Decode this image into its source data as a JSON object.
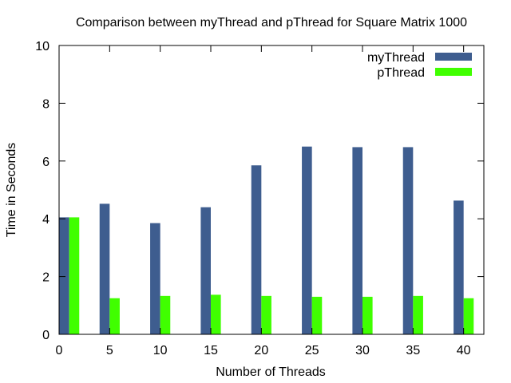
{
  "chart_data": {
    "type": "bar",
    "title": "Comparison between myThread and pThread for Square Matrix 1000",
    "xlabel": "Number of Threads",
    "ylabel": "Time in Seconds",
    "xlim": [
      0,
      42
    ],
    "ylim": [
      0,
      10
    ],
    "xticks": [
      0,
      5,
      10,
      15,
      20,
      25,
      30,
      35,
      40
    ],
    "yticks": [
      0,
      2,
      4,
      6,
      8,
      10
    ],
    "x": [
      1,
      5,
      10,
      15,
      20,
      25,
      30,
      35,
      40
    ],
    "series": [
      {
        "name": "myThread",
        "color": "#3e5d8f",
        "values": [
          4.05,
          4.52,
          3.85,
          4.4,
          5.85,
          6.5,
          6.48,
          6.48,
          4.63
        ]
      },
      {
        "name": "pThread",
        "color": "#40ff00",
        "values": [
          4.05,
          1.25,
          1.33,
          1.37,
          1.33,
          1.3,
          1.3,
          1.33,
          1.25
        ]
      }
    ],
    "legend_position": "top-right",
    "grid": false
  }
}
